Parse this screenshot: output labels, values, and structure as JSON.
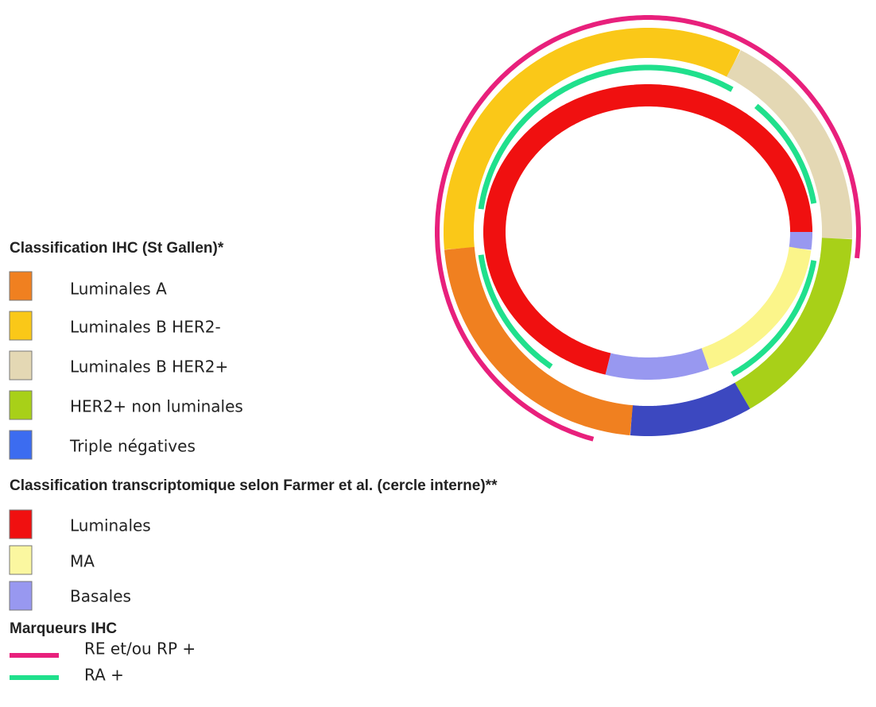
{
  "legend_ihc": {
    "title": "Classification  IHC (St Gallen)*",
    "items": [
      "Luminales A",
      "Luminales B HER2-",
      "Luminales B HER2+",
      "HER2+ non luminales",
      "Triple négatives"
    ]
  },
  "legend_transcriptomic": {
    "title": "Classification  transcriptomique  selon Farmer et al. (cercle interne)**",
    "items": [
      "Luminales",
      "MA",
      "Basales"
    ]
  },
  "legend_markers": {
    "title": "Marqueurs IHC",
    "items": [
      "RE et/ou RP +",
      "RA +"
    ]
  }
}
